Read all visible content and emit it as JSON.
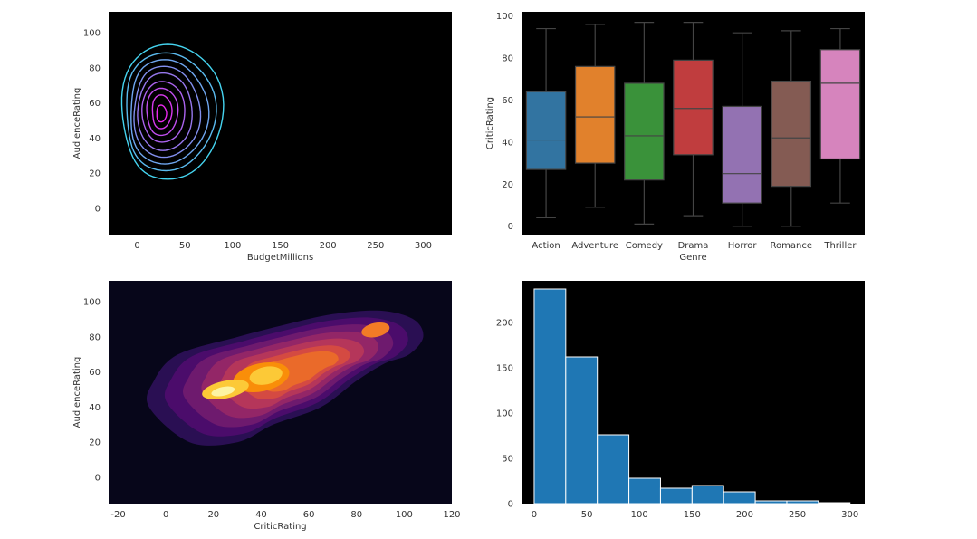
{
  "chart_data": [
    {
      "type": "contour",
      "id": "top-left",
      "title": "",
      "xlabel": "BudgetMillions",
      "ylabel": "AudienceRating",
      "xlim": [
        -30,
        330
      ],
      "ylim": [
        -15,
        112
      ],
      "xticks": [
        0,
        50,
        100,
        150,
        200,
        250,
        300
      ],
      "yticks": [
        0,
        20,
        40,
        60,
        80,
        100
      ],
      "background": "#000000",
      "grid": false,
      "levels": [
        {
          "cx": 32,
          "cy": 55,
          "rx": 52,
          "ry": 40,
          "color": "#45d4f0"
        },
        {
          "cx": 30,
          "cy": 55,
          "rx": 46,
          "ry": 35,
          "color": "#5bbbef"
        },
        {
          "cx": 29,
          "cy": 55,
          "rx": 40,
          "ry": 31,
          "color": "#6fa6ef"
        },
        {
          "cx": 28,
          "cy": 55,
          "rx": 34,
          "ry": 27,
          "color": "#828fee"
        },
        {
          "cx": 27,
          "cy": 55,
          "rx": 28,
          "ry": 23,
          "color": "#9778ee"
        },
        {
          "cx": 26,
          "cy": 55,
          "rx": 22,
          "ry": 18,
          "color": "#ab63ee"
        },
        {
          "cx": 25,
          "cy": 55,
          "rx": 16,
          "ry": 14,
          "color": "#c04eee"
        },
        {
          "cx": 25,
          "cy": 55,
          "rx": 10,
          "ry": 10,
          "color": "#d63aee"
        },
        {
          "cx": 25,
          "cy": 54,
          "rx": 5,
          "ry": 5,
          "color": "#ea28ee"
        }
      ]
    },
    {
      "type": "box",
      "id": "top-right",
      "title": "",
      "xlabel": "Genre",
      "ylabel": "CriticRating",
      "ylim": [
        -4,
        102
      ],
      "yticks": [
        0,
        20,
        40,
        60,
        80,
        100
      ],
      "background": "#000000",
      "grid": false,
      "categories": [
        "Action",
        "Adventure",
        "Comedy",
        "Drama",
        "Horror",
        "Romance",
        "Thriller"
      ],
      "boxes": [
        {
          "min": 4,
          "q1": 27,
          "median": 41,
          "q3": 64,
          "max": 94,
          "color": "#3274a1"
        },
        {
          "min": 9,
          "q1": 30,
          "median": 52,
          "q3": 76,
          "max": 96,
          "color": "#e1812c"
        },
        {
          "min": 1,
          "q1": 22,
          "median": 43,
          "q3": 68,
          "max": 97,
          "color": "#3a923a"
        },
        {
          "min": 5,
          "q1": 34,
          "median": 56,
          "q3": 79,
          "max": 97,
          "color": "#c03d3e"
        },
        {
          "min": 0,
          "q1": 11,
          "median": 25,
          "q3": 57,
          "max": 92,
          "color": "#9372b2"
        },
        {
          "min": 0,
          "q1": 19,
          "median": 42,
          "q3": 69,
          "max": 93,
          "color": "#845b53"
        },
        {
          "min": 11,
          "q1": 32,
          "median": 68,
          "q3": 84,
          "max": 94,
          "color": "#d684bd"
        }
      ]
    },
    {
      "type": "kde-filled",
      "id": "bottom-left",
      "title": "",
      "xlabel": "CriticRating",
      "ylabel": "AudienceRating",
      "xlim": [
        -24,
        120
      ],
      "ylim": [
        -15,
        112
      ],
      "xticks": [
        -20,
        0,
        20,
        40,
        60,
        80,
        100,
        120
      ],
      "yticks": [
        0,
        20,
        40,
        60,
        80,
        100
      ],
      "background": "#07061a",
      "grid": false,
      "density_path": [
        [
          10,
          20
        ],
        [
          30,
          20
        ],
        [
          45,
          30
        ],
        [
          65,
          40
        ],
        [
          80,
          55
        ],
        [
          92,
          65
        ],
        [
          102,
          70
        ],
        [
          108,
          80
        ],
        [
          104,
          90
        ],
        [
          90,
          95
        ],
        [
          70,
          93
        ],
        [
          50,
          87
        ],
        [
          30,
          80
        ],
        [
          5,
          70
        ],
        [
          -5,
          55
        ],
        [
          -7,
          40
        ]
      ],
      "levels": [
        {
          "scale": 1.0,
          "color": "#2a0f53"
        },
        {
          "scale": 0.88,
          "color": "#4b0c6b"
        },
        {
          "scale": 0.76,
          "color": "#6e1a6e"
        },
        {
          "scale": 0.64,
          "color": "#932667"
        },
        {
          "scale": 0.52,
          "color": "#b5365a"
        },
        {
          "scale": 0.4,
          "color": "#d44a42"
        },
        {
          "scale": 0.3,
          "color": "#ea6a2a"
        }
      ],
      "peaks": [
        {
          "cx": 40,
          "cy": 57,
          "rx": 12,
          "ry": 8,
          "color": "#f98e09"
        },
        {
          "cx": 25,
          "cy": 50,
          "rx": 10,
          "ry": 5,
          "color": "#fcc937"
        },
        {
          "cx": 42,
          "cy": 58,
          "rx": 7,
          "ry": 5,
          "color": "#fcc937"
        },
        {
          "cx": 24,
          "cy": 49,
          "rx": 5,
          "ry": 2.5,
          "color": "#fcf4a4"
        },
        {
          "cx": 88,
          "cy": 84,
          "rx": 6,
          "ry": 4,
          "color": "#f27b26"
        }
      ]
    },
    {
      "type": "histogram",
      "id": "bottom-right",
      "title": "",
      "xlabel": "",
      "ylabel": "",
      "xlim": [
        -12,
        314
      ],
      "ylim": [
        0,
        246
      ],
      "xticks": [
        0,
        50,
        100,
        150,
        200,
        250,
        300
      ],
      "yticks": [
        0,
        50,
        100,
        150,
        200
      ],
      "background": "#000000",
      "grid": false,
      "color": "#1f77b4",
      "bins": [
        {
          "x0": 0,
          "x1": 30,
          "count": 237
        },
        {
          "x0": 30,
          "x1": 60,
          "count": 162
        },
        {
          "x0": 60,
          "x1": 90,
          "count": 76
        },
        {
          "x0": 90,
          "x1": 120,
          "count": 28
        },
        {
          "x0": 120,
          "x1": 150,
          "count": 17
        },
        {
          "x0": 150,
          "x1": 180,
          "count": 20
        },
        {
          "x0": 180,
          "x1": 210,
          "count": 13
        },
        {
          "x0": 210,
          "x1": 240,
          "count": 3
        },
        {
          "x0": 240,
          "x1": 270,
          "count": 3
        },
        {
          "x0": 270,
          "x1": 300,
          "count": 1
        }
      ]
    }
  ]
}
